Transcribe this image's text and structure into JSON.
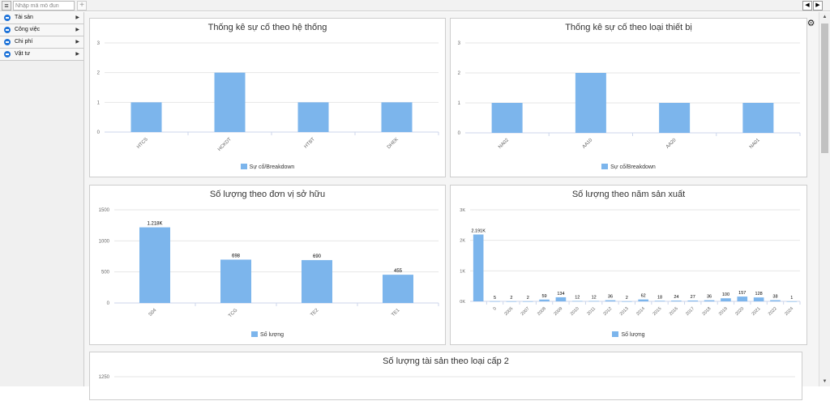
{
  "toolbar": {
    "menu_icon": "hamburger-icon",
    "module_placeholder": "Nhập mã mô đun",
    "add_tab_label": "+",
    "prev_label": "◀",
    "next_label": "▶"
  },
  "sidebar": {
    "items": [
      {
        "label": "Tài sản"
      },
      {
        "label": "Công việc"
      },
      {
        "label": "Chi phí"
      },
      {
        "label": "Vật tư"
      }
    ],
    "caret": "▶"
  },
  "settings_icon": "⚙",
  "scrollbar": {
    "up": "▲",
    "down": "▼"
  },
  "colors": {
    "bar": "#7cb5ec",
    "grid": "#e6e6e6",
    "axis": "#ccd6eb"
  },
  "chart_data": [
    {
      "id": "system",
      "type": "bar",
      "title": "Thống kê sự cố theo hệ thống",
      "categories": [
        "HTCS",
        "HCKDT",
        "HTBT",
        "DHEK"
      ],
      "series": [
        {
          "name": "Sự cố/Breakdown",
          "values": [
            1,
            2,
            1,
            1
          ]
        }
      ],
      "ylim": [
        0,
        3
      ],
      "yticks": [
        "0",
        "1",
        "2",
        "3"
      ],
      "ytick_values": [
        0,
        1,
        2,
        3
      ],
      "data_labels": [],
      "rotate": -45,
      "grid": true,
      "legend": "bottom-center"
    },
    {
      "id": "equipment",
      "type": "bar",
      "title": "Thống kê sự cố theo loại thiết bị",
      "categories": [
        "NA02",
        "AA10",
        "AA20",
        "NA01"
      ],
      "series": [
        {
          "name": "Sự cố/Breakdown",
          "values": [
            1,
            2,
            1,
            1
          ]
        }
      ],
      "ylim": [
        0,
        3
      ],
      "yticks": [
        "0",
        "1",
        "2",
        "3"
      ],
      "ytick_values": [
        0,
        1,
        2,
        3
      ],
      "data_labels": [],
      "rotate": -45,
      "grid": true,
      "legend": "bottom-center"
    },
    {
      "id": "owner",
      "type": "bar",
      "title": "Số lượng theo đơn vị sở hữu",
      "categories": [
        "S04",
        "TCG",
        "TE2",
        "TE1"
      ],
      "series": [
        {
          "name": "Số lượng",
          "values": [
            1218,
            698,
            690,
            455
          ]
        }
      ],
      "ylim": [
        0,
        1500
      ],
      "yticks": [
        "0",
        "500",
        "1000",
        "1500"
      ],
      "ytick_values": [
        0,
        500,
        1000,
        1500
      ],
      "data_labels": [
        "1.218K",
        "698",
        "690",
        "455"
      ],
      "rotate": -45,
      "grid": true,
      "legend": "bottom-center"
    },
    {
      "id": "year",
      "type": "bar",
      "title": "Số lượng theo năm sản xuất",
      "categories": [
        "",
        "0",
        "2005",
        "2007",
        "2008",
        "2009",
        "2010",
        "2011",
        "2012",
        "2013",
        "2014",
        "2015",
        "2016",
        "2017",
        "2018",
        "2019",
        "2020",
        "2021",
        "2022",
        "2024"
      ],
      "series": [
        {
          "name": "Số lượng",
          "values": [
            2191,
            5,
            2,
            2,
            59,
            134,
            12,
            12,
            36,
            2,
            62,
            18,
            24,
            27,
            36,
            100,
            157,
            128,
            38,
            1
          ]
        }
      ],
      "ylim": [
        0,
        3000
      ],
      "yticks": [
        "0K",
        "1K",
        "2K",
        "3K"
      ],
      "ytick_values": [
        0,
        1000,
        2000,
        3000
      ],
      "data_labels": [
        "2.191K",
        "5",
        "2",
        "2",
        "59",
        "134",
        "12",
        "12",
        "36",
        "2",
        "62",
        "18",
        "24",
        "27",
        "36",
        "100",
        "157",
        "128",
        "38",
        "1"
      ],
      "rotate": -45,
      "grid": true,
      "legend": "bottom-center"
    },
    {
      "id": "asset-type",
      "type": "bar",
      "title": "Số lượng tài sản theo loại cấp 2",
      "categories": [],
      "series": [],
      "ylim": [
        0,
        1250
      ],
      "yticks": [
        "1250"
      ],
      "ytick_values": [
        1250
      ],
      "data_labels": [],
      "grid": true,
      "legend": "none"
    }
  ]
}
